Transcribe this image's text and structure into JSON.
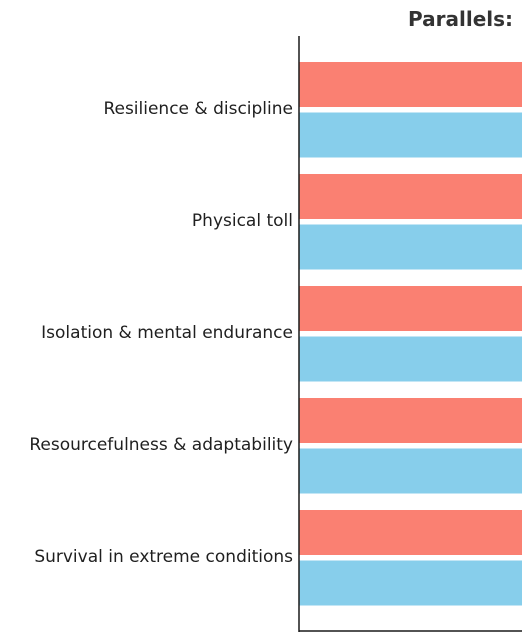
{
  "chart_data": {
    "type": "bar",
    "orientation": "horizontal",
    "title": "Parallels:",
    "categories": [
      "Resilience & discipline",
      "Physical toll",
      "Isolation & mental endurance",
      "Resourcefulness & adaptability",
      "Survival in extreme conditions"
    ],
    "series": [
      {
        "color": "#FA8072",
        "values": [
          1,
          1,
          1,
          1,
          1
        ]
      },
      {
        "color": "#87CEEB",
        "values": [
          1,
          1,
          1,
          1,
          1
        ]
      }
    ],
    "xlim": [
      0,
      1
    ],
    "grid": false,
    "legend": "none"
  }
}
